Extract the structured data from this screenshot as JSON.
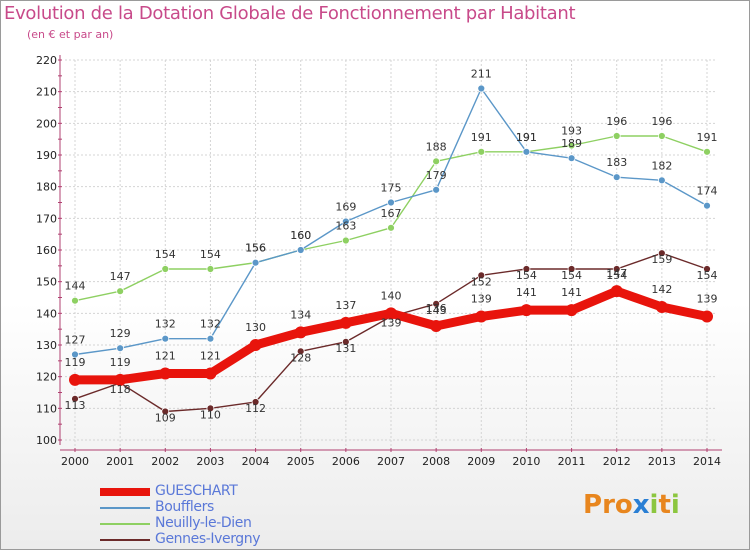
{
  "title": "Evolution de la Dotation Globale de Fonctionnement par Habitant",
  "subtitle": "(en € et par an)",
  "logo": {
    "text": "Proxiti",
    "letters": [
      "P",
      "r",
      "o",
      "x",
      "i",
      "t",
      "i"
    ],
    "colors": [
      "#e8861e",
      "#e8861e",
      "#e8861e",
      "#2a7fd4",
      "#8cc63f",
      "#e8861e",
      "#8cc63f"
    ]
  },
  "chart_data": {
    "type": "line",
    "title": "Evolution de la Dotation Globale de Fonctionnement par Habitant",
    "subtitle": "(en € et par an)",
    "x": [
      "2000",
      "2001",
      "2002",
      "2003",
      "2004",
      "2005",
      "2006",
      "2007",
      "2008",
      "2009",
      "2010",
      "2011",
      "2012",
      "2013",
      "2014"
    ],
    "ylim": [
      100,
      220
    ],
    "yticks": [
      100,
      110,
      120,
      130,
      140,
      150,
      160,
      170,
      180,
      190,
      200,
      210,
      220
    ],
    "grid": true,
    "legend_position": "bottom-left",
    "series": [
      {
        "name": "GUESCHART",
        "color": "#e8140c",
        "values": [
          119,
          119,
          121,
          121,
          130,
          134,
          137,
          140,
          136,
          139,
          141,
          141,
          147,
          142,
          139
        ]
      },
      {
        "name": "Boufflers",
        "color": "#5b97c8",
        "values": [
          127,
          129,
          132,
          132,
          156,
          160,
          169,
          175,
          179,
          211,
          191,
          189,
          183,
          182,
          174
        ]
      },
      {
        "name": "Neuilly-le-Dien",
        "color": "#8ed062",
        "values": [
          144,
          147,
          154,
          154,
          156,
          160,
          163,
          167,
          188,
          191,
          191,
          193,
          196,
          196,
          191
        ]
      },
      {
        "name": "Gennes-Ivergny",
        "color": "#6b2a2a",
        "values": [
          113,
          118,
          109,
          110,
          112,
          128,
          131,
          139,
          143,
          152,
          154,
          154,
          154,
          159,
          154
        ]
      }
    ]
  }
}
